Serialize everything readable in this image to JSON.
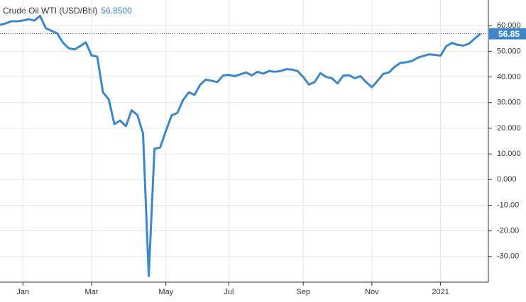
{
  "chart_data": {
    "type": "line",
    "title": "Crude Oil WTI (USD/Bbl)",
    "price_label": "56.8500",
    "categories": [
      null,
      null,
      null,
      null,
      "Jan",
      null,
      null,
      null,
      null,
      null,
      null,
      null,
      null,
      null,
      null,
      null,
      "Mar",
      null,
      null,
      null,
      null,
      null,
      null,
      null,
      null,
      null,
      null,
      null,
      null,
      "May",
      null,
      null,
      null,
      null,
      null,
      null,
      null,
      null,
      null,
      null,
      "Jul",
      null,
      null,
      null,
      null,
      null,
      null,
      null,
      null,
      null,
      null,
      null,
      null,
      "Sep",
      null,
      null,
      null,
      null,
      null,
      null,
      null,
      null,
      null,
      null,
      null,
      "Nov",
      null,
      null,
      null,
      null,
      null,
      null,
      null,
      null,
      null,
      null,
      null,
      "2021",
      null,
      null,
      null,
      null,
      null,
      null,
      null
    ],
    "series": [
      {
        "color": "#3d87c9",
        "values": [
          60.3,
          60.9,
          61.7,
          61.7,
          62,
          62.5,
          62,
          63.8,
          59,
          58,
          57,
          53.4,
          51.2,
          50.7,
          52,
          53.5,
          48.4,
          47.9,
          34,
          31.3,
          21.6,
          23,
          20.8,
          27,
          25.2,
          18,
          -37.6,
          12,
          12.5,
          19,
          25,
          26,
          31,
          34,
          33,
          37,
          39,
          38.5,
          38,
          40.6,
          40.8,
          40.3,
          41,
          41.8,
          40.6,
          42,
          41.3,
          42.3,
          42,
          42.3,
          43,
          42.9,
          42.3,
          40,
          37,
          38,
          41.5,
          40,
          39.5,
          37.5,
          40.5,
          40.7,
          39.5,
          40.3,
          38,
          36,
          38.5,
          41.2,
          41.8,
          44,
          45.5,
          45.7,
          46.2,
          47.5,
          48.2,
          48.8,
          48.6,
          48.3,
          52,
          53.3,
          52.5,
          52.2,
          53,
          55,
          56.85
        ]
      }
    ],
    "ylim": [
      -40,
      70
    ],
    "yticks": [
      {
        "value": 60,
        "label": "60.000"
      },
      {
        "value": 50,
        "label": "50.000"
      },
      {
        "value": 40,
        "label": "40.000"
      },
      {
        "value": 30,
        "label": "30.000"
      },
      {
        "value": 20,
        "label": "20.000"
      },
      {
        "value": 10,
        "label": "10.000"
      },
      {
        "value": 0,
        "label": "0.000"
      },
      {
        "value": -10,
        "label": "-10.00"
      },
      {
        "value": -20,
        "label": "-20.00"
      },
      {
        "value": -30,
        "label": "-30.00"
      }
    ],
    "grid": true
  }
}
